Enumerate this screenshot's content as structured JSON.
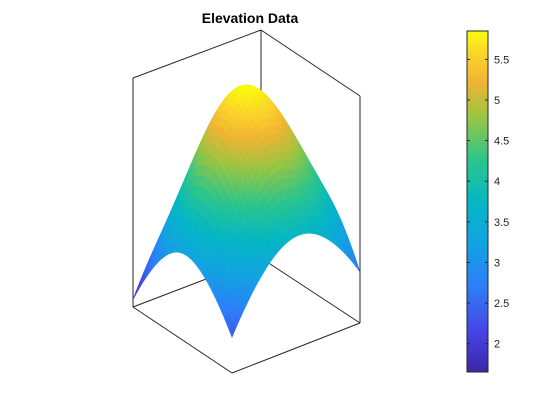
{
  "chart_data": {
    "type": "surface",
    "title": "Elevation Data",
    "xlabel": "",
    "ylabel": "",
    "zlabel": "",
    "colormap": "parula",
    "grid": false,
    "axes_box": true,
    "surface_shape": "gaussian peak on square grid",
    "z_range": [
      1.7,
      5.85
    ],
    "corner_values": {
      "left": 1.8,
      "front": 2.3,
      "right": 2.6,
      "back": 2.4
    },
    "edge_midpoint_values": {
      "left_back": 3.2,
      "left_front": 3.0,
      "front_right": 3.5,
      "back_right": 3.6
    },
    "peak_value": 5.85,
    "colorbar": {
      "position": "right",
      "min": 1.65,
      "max": 5.85,
      "ticks": [
        2,
        2.5,
        3,
        3.5,
        4,
        4.5,
        5,
        5.5
      ],
      "tick_labels": [
        "2",
        "2.5",
        "3",
        "3.5",
        "4",
        "4.5",
        "5",
        "5.5"
      ]
    }
  }
}
